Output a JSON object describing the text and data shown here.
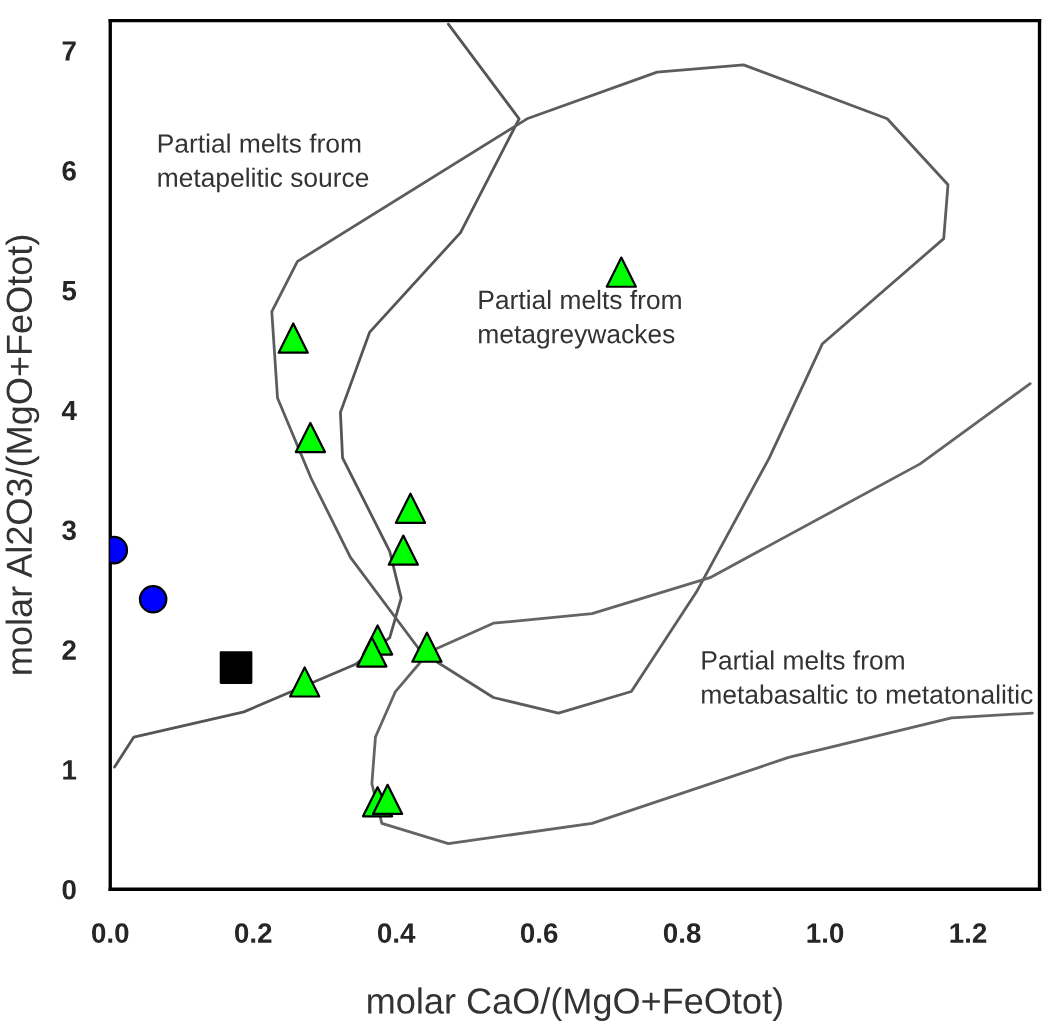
{
  "chart_data": {
    "type": "scatter",
    "xlabel": "molar CaO/(MgO+FeOtot)",
    "ylabel": "molar Al2O3/(MgO+FeOtot)",
    "xlim": [
      0,
      1.3
    ],
    "ylim": [
      0,
      7.25
    ],
    "xticks": [
      {
        "value": 0,
        "label": "0.0"
      },
      {
        "value": 0.2,
        "label": "0.2"
      },
      {
        "value": 0.4,
        "label": "0.4"
      },
      {
        "value": 0.6,
        "label": "0.6"
      },
      {
        "value": 0.8,
        "label": "0.8"
      },
      {
        "value": 1.0,
        "label": "1.0"
      },
      {
        "value": 1.2,
        "label": "1.2"
      }
    ],
    "yticks": [
      0,
      1,
      2,
      3,
      4,
      5,
      6,
      7
    ],
    "grid": false,
    "legend": false,
    "annotations": [
      "Partial melts from\nmetapelitic source",
      "Partial melts from\nmetagreywackes",
      "Partial melts from\nmetabasaltic to metatonalitic"
    ],
    "series": [
      {
        "type": "line",
        "color": "#555555",
        "marker": "none",
        "x": [
          0.473,
          0.572,
          0.49,
          0.363,
          0.322,
          0.325,
          0.391,
          0.407,
          0.391,
          0.344,
          0.187,
          0.033,
          0.006
        ],
        "values": [
          7.22,
          6.43,
          5.48,
          4.65,
          3.98,
          3.6,
          2.82,
          2.43,
          2.1,
          1.88,
          1.48,
          1.27,
          1.02
        ]
      },
      {
        "type": "line",
        "color": "#5c5c5c",
        "marker": "none",
        "x": [
          0.261,
          0.226,
          0.234,
          0.281,
          0.336,
          0.435,
          0.536,
          0.627,
          0.729,
          0.82,
          0.922,
          0.996,
          1.166,
          1.172,
          1.087,
          0.886,
          0.765,
          0.583,
          0.262
        ],
        "values": [
          5.23,
          4.82,
          4.1,
          3.43,
          2.77,
          1.98,
          1.6,
          1.47,
          1.65,
          2.48,
          3.6,
          4.55,
          5.43,
          5.88,
          6.43,
          6.88,
          6.82,
          6.43,
          5.24
        ]
      },
      {
        "type": "line",
        "color": "#646464",
        "marker": "none",
        "x": [
          1.287,
          1.133,
          0.839,
          0.674,
          0.536,
          0.446,
          0.399,
          0.371,
          0.366,
          0.38,
          0.473,
          0.674,
          0.949,
          1.177,
          1.29
        ],
        "values": [
          4.22,
          3.55,
          2.6,
          2.3,
          2.22,
          1.98,
          1.65,
          1.27,
          0.88,
          0.55,
          0.38,
          0.55,
          1.1,
          1.43,
          1.47
        ]
      },
      {
        "type": "scatter",
        "color": "#00ff00",
        "marker": "triangle",
        "x": [
          0.256,
          0.28,
          0.715,
          0.42,
          0.41,
          0.374,
          0.366,
          0.443,
          0.272,
          0.374,
          0.388
        ],
        "values": [
          4.6,
          3.77,
          5.15,
          3.18,
          2.83,
          2.08,
          1.98,
          2.02,
          1.73,
          0.73,
          0.75
        ]
      },
      {
        "type": "scatter",
        "color": "#0000ff",
        "marker": "circle",
        "x": [
          0.005,
          0.06
        ],
        "values": [
          2.83,
          2.42
        ]
      },
      {
        "type": "scatter",
        "color": "#000000",
        "marker": "square",
        "x": [
          0.176
        ],
        "values": [
          1.85
        ]
      }
    ]
  }
}
